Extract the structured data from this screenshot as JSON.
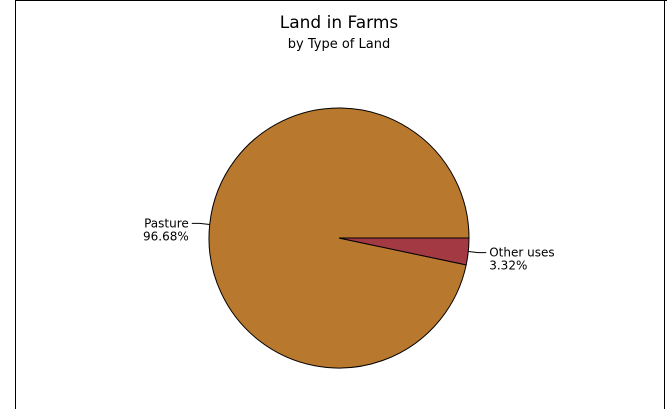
{
  "chart_data": {
    "type": "pie",
    "title": "Land in Farms",
    "subtitle": "by Type of Land",
    "slices": [
      {
        "label": "Pasture",
        "value": 96.68,
        "value_label": "96.68%",
        "color": "#b8782e"
      },
      {
        "label": "Other uses",
        "value": 3.32,
        "value_label": "3.32%",
        "color": "#a33a43"
      }
    ],
    "colors": {
      "outline": "#000000",
      "frame": "#000000"
    }
  }
}
